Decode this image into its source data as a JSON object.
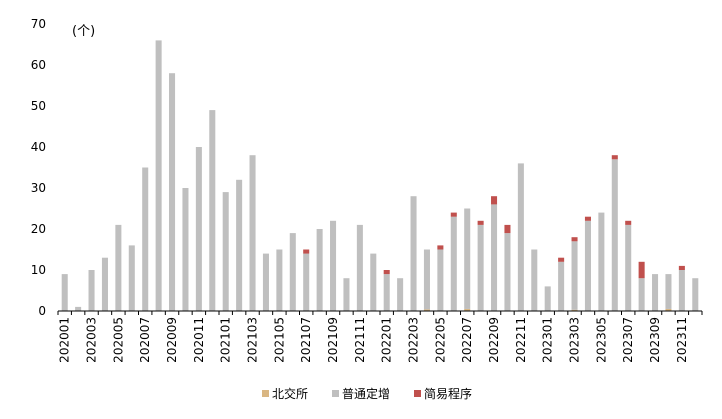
{
  "chart_data": {
    "type": "bar",
    "stacked": true,
    "unit_label": "(个)",
    "ylim": [
      0,
      70
    ],
    "yticks": [
      0,
      10,
      20,
      30,
      40,
      50,
      60,
      70
    ],
    "grid": false,
    "legend_position": "bottom-center",
    "categories": [
      "202001",
      "202002",
      "202003",
      "202004",
      "202005",
      "202006",
      "202007",
      "202008",
      "202009",
      "202010",
      "202011",
      "202012",
      "202101",
      "202102",
      "202103",
      "202104",
      "202105",
      "202106",
      "202107",
      "202108",
      "202109",
      "202110",
      "202111",
      "202112",
      "202201",
      "202202",
      "202203",
      "202204",
      "202205",
      "202206",
      "202207",
      "202208",
      "202209",
      "202210",
      "202211",
      "202212",
      "202301",
      "202302",
      "202303",
      "202304",
      "202305",
      "202306",
      "202307",
      "202308",
      "202309",
      "202310",
      "202311",
      "202312"
    ],
    "tick_labels": [
      "202001",
      "202003",
      "202005",
      "202007",
      "202009",
      "202011",
      "202101",
      "202103",
      "202105",
      "202107",
      "202109",
      "202111",
      "202201",
      "202203",
      "202205",
      "202207",
      "202209",
      "202211",
      "202301",
      "202303",
      "202305",
      "202307",
      "202309",
      "202311"
    ],
    "series": [
      {
        "name": "北交所",
        "color": "#d9b682",
        "values": [
          0,
          0,
          0,
          0,
          0,
          0,
          0,
          0,
          0,
          0,
          0,
          0,
          0,
          0,
          0,
          0,
          0,
          0,
          0,
          0,
          0,
          0,
          0,
          0,
          0,
          0,
          0,
          0.4,
          0,
          0,
          0.5,
          0,
          0,
          0,
          0,
          0,
          0,
          0,
          0.3,
          0,
          0,
          0,
          0,
          0,
          0,
          0.5,
          0,
          0
        ]
      },
      {
        "name": "普通定增",
        "color": "#bfbfbf",
        "values": [
          9,
          1,
          10,
          13,
          21,
          16,
          35,
          66,
          58,
          30,
          40,
          49,
          29,
          32,
          38,
          14,
          15,
          19,
          14,
          20,
          22,
          8,
          21,
          14,
          9,
          8,
          28,
          14.6,
          15,
          23,
          24.5,
          21,
          26,
          19,
          36,
          15,
          6,
          12,
          16.7,
          22,
          24,
          37,
          21,
          8,
          9,
          8.5,
          10,
          8
        ]
      },
      {
        "name": "简易程序",
        "color": "#c0504d",
        "values": [
          0,
          0,
          0,
          0,
          0,
          0,
          0,
          0,
          0,
          0,
          0,
          0,
          0,
          0,
          0,
          0,
          0,
          0,
          1,
          0,
          0,
          0,
          0,
          0,
          1,
          0,
          0,
          0,
          1,
          1,
          0,
          1,
          2,
          2,
          0,
          0,
          0,
          1,
          1,
          1,
          0,
          1,
          1,
          4,
          0,
          0,
          1,
          0
        ]
      }
    ]
  }
}
